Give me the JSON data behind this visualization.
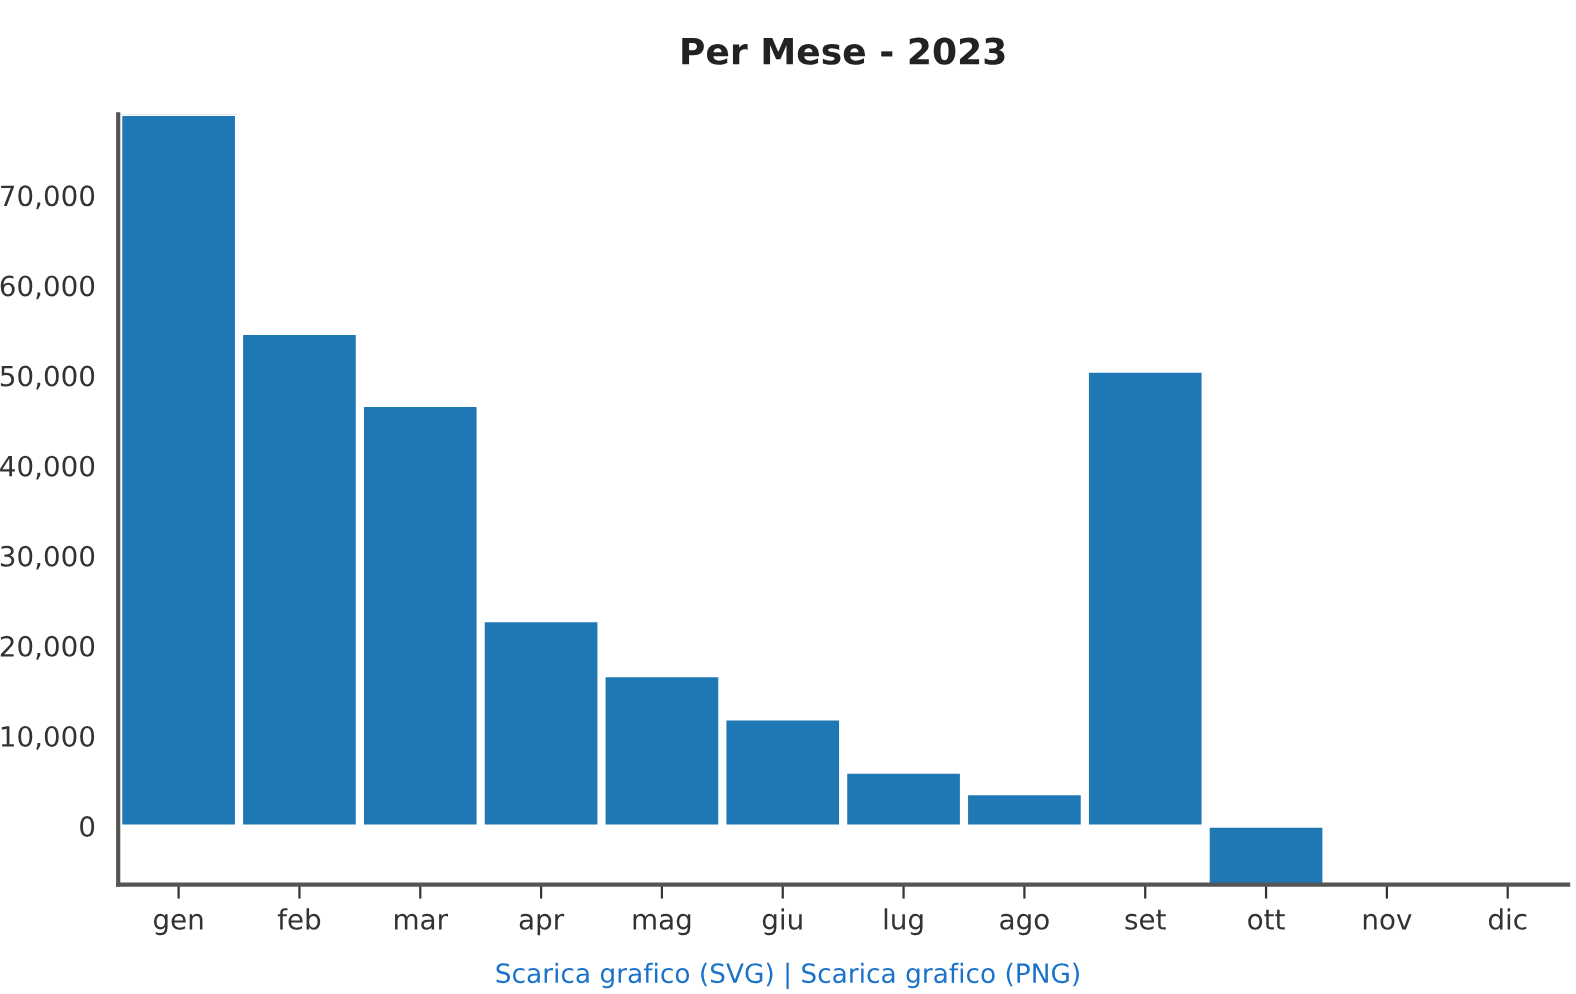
{
  "chart_data": {
    "type": "bar",
    "title": "Per Mese - 2023",
    "categories": [
      "gen",
      "feb",
      "mar",
      "apr",
      "mag",
      "giu",
      "lug",
      "ago",
      "set",
      "ott",
      "nov",
      "dic"
    ],
    "values": [
      79000,
      54700,
      46700,
      22800,
      16700,
      11900,
      6000,
      3600,
      50500,
      -6500,
      null,
      null
    ],
    "color": "#1f77b4",
    "ylim": [
      -6500,
      79000
    ],
    "yticks": [
      {
        "value": 0,
        "label": "0"
      },
      {
        "value": 10000,
        "label": "10,000"
      },
      {
        "value": 20000,
        "label": "20,000"
      },
      {
        "value": 30000,
        "label": "30,000"
      },
      {
        "value": 40000,
        "label": "40,000"
      },
      {
        "value": 50000,
        "label": "50,000"
      },
      {
        "value": 60000,
        "label": "60,000"
      },
      {
        "value": 70000,
        "label": "70,000"
      }
    ],
    "grid": false,
    "annotations": [
      "Scarica grafico (SVG) | Scarica grafico (PNG)"
    ]
  }
}
